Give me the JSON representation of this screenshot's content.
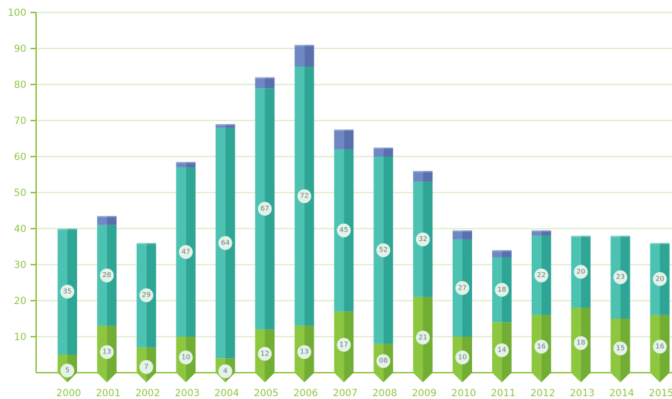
{
  "chart_data": {
    "type": "bar",
    "stacked": true,
    "title": "",
    "xlabel": "",
    "ylabel": "",
    "ylim": [
      0,
      100
    ],
    "yticks": [
      10,
      20,
      30,
      40,
      50,
      60,
      70,
      80,
      90,
      100
    ],
    "grid": true,
    "legend": "none",
    "categories": [
      "2000",
      "2001",
      "2002",
      "2003",
      "2004",
      "2005",
      "2006",
      "2007",
      "2008",
      "2009",
      "2010",
      "2011",
      "2012",
      "2013",
      "2014",
      "2015"
    ],
    "series": [
      {
        "values": [
          5,
          13,
          7,
          10,
          4,
          12,
          13,
          17,
          8,
          21,
          10,
          14,
          16,
          18,
          15,
          16
        ],
        "labels": [
          "5",
          "13",
          "7",
          "10",
          "4",
          "12",
          "13",
          "17",
          "08",
          "21",
          "10",
          "14",
          "16",
          "18",
          "15",
          "16"
        ]
      },
      {
        "values": [
          35,
          28,
          29,
          47,
          64,
          67,
          72,
          45,
          52,
          32,
          27,
          18,
          22,
          20,
          23,
          20
        ],
        "labels": [
          "35",
          "28",
          "29",
          "47",
          "64",
          "67",
          "72",
          "45",
          "52",
          "32",
          "27",
          "18",
          "22",
          "20",
          "23",
          "20"
        ]
      }
    ],
    "caps": [
      0,
      2.5,
      0,
      1.5,
      1,
      3,
      6,
      5.5,
      2.5,
      3,
      2.5,
      2,
      1.5,
      0,
      0,
      0
    ],
    "colors": {
      "bottom_light": "#8dc63f",
      "bottom_dark": "#72ad34",
      "top_light": "#4cc3b2",
      "top_dark": "#2fa595",
      "cap_light": "#6f87c4",
      "cap_dark": "#5a6fae",
      "axis": "#8cc63f",
      "grid": "#d9ecc0",
      "label_bg": "#e4f2e9"
    }
  }
}
